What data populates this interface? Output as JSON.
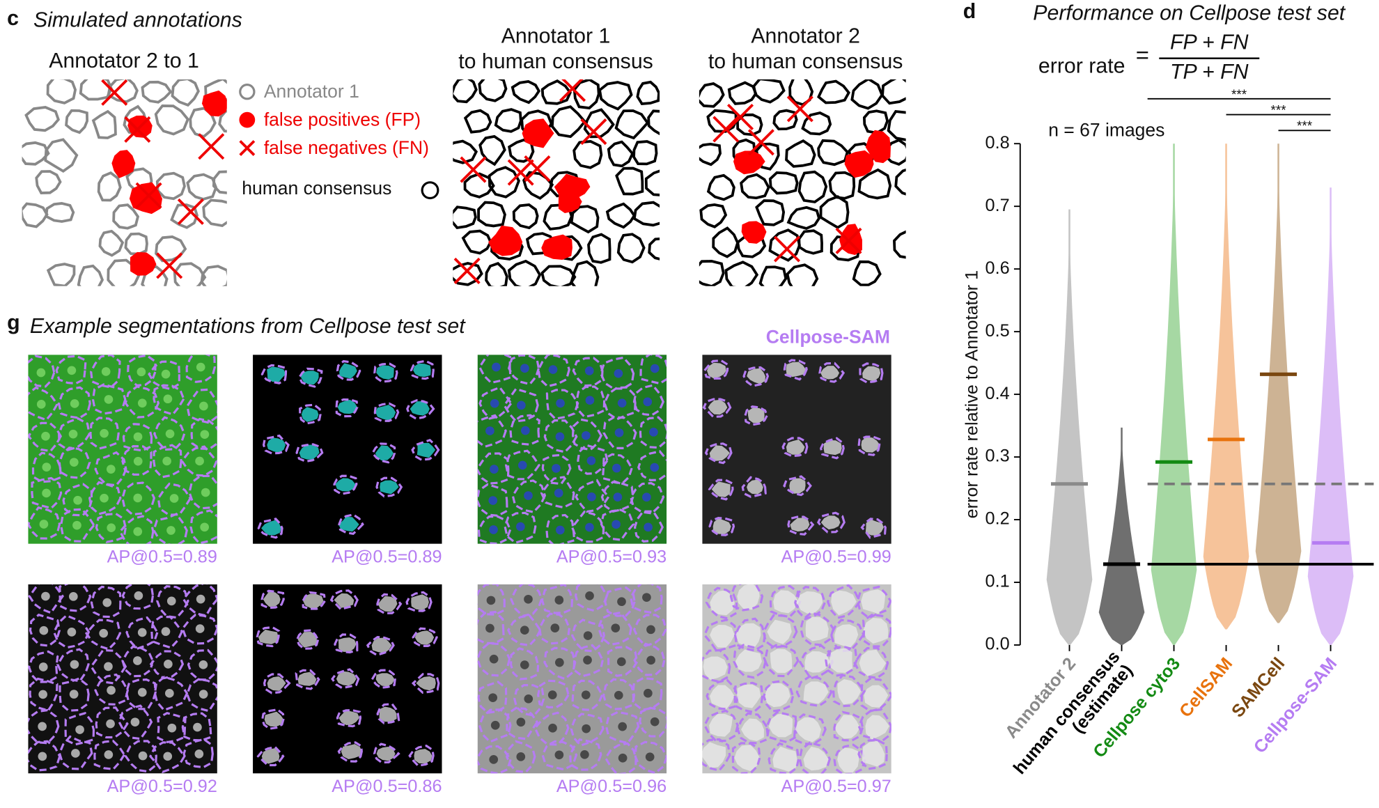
{
  "panel_c": {
    "letter": "c",
    "title": "Simulated annotations",
    "panels": [
      {
        "title": [
          "Annotator 2 to 1"
        ]
      },
      {
        "title": [
          "Annotator 1",
          "to human consensus"
        ]
      },
      {
        "title": [
          "Annotator 2",
          "to human consensus"
        ]
      }
    ],
    "legend": [
      "Annotator 1",
      "false positives (FP)",
      "false negatives (FN)",
      "human consensus"
    ]
  },
  "panel_g": {
    "letter": "g",
    "title": "Example segmentations from Cellpose test set",
    "model": "Cellpose-SAM",
    "images": [
      {
        "label": "AP@0.5=0.89"
      },
      {
        "label": "AP@0.5=0.89"
      },
      {
        "label": "AP@0.5=0.93"
      },
      {
        "label": "AP@0.5=0.99"
      },
      {
        "label": "AP@0.5=0.92"
      },
      {
        "label": "AP@0.5=0.86"
      },
      {
        "label": "AP@0.5=0.96"
      },
      {
        "label": "AP@0.5=0.97"
      }
    ]
  },
  "chart_data": {
    "type": "violin",
    "letter": "d",
    "title": "Performance on Cellpose test set",
    "formula": {
      "lhs": "error rate",
      "eq": "=",
      "numerator": "FP + FN",
      "denominator": "TP + FN"
    },
    "annotation": "n = 67 images",
    "ylabel": "error rate relative to Annotator 1",
    "categories": [
      [
        "Annotator 2"
      ],
      [
        "human consensus",
        "(estimate)"
      ],
      [
        "Cellpose cyto3"
      ],
      [
        "CellSAM"
      ],
      [
        "SAMCell"
      ],
      [
        "Cellpose-SAM"
      ]
    ],
    "values": [
      0.257,
      0.129,
      0.292,
      0.328,
      0.432,
      0.163
    ],
    "min": [
      0,
      0,
      0,
      0.025,
      0.035,
      0
    ],
    "max": [
      0.695,
      0.347,
      0.8,
      0.8,
      0.8,
      0.73
    ],
    "colors": [
      "#c4c4c4",
      "#6f6f6f",
      "#a6d8a3",
      "#f6c39a",
      "#cdb394",
      "#dcbdf7"
    ],
    "median_colors": [
      "#8a8a8a",
      "#000000",
      "#138a13",
      "#e8720c",
      "#7a4710",
      "#b57cf2"
    ],
    "reference_lines": [
      {
        "category": 0,
        "style": "dashed"
      },
      {
        "category": 1,
        "style": "solid"
      }
    ],
    "significance": [
      {
        "from": 2,
        "to": 5,
        "label": "***"
      },
      {
        "from": 3,
        "to": 5,
        "label": "***"
      },
      {
        "from": 4,
        "to": 5,
        "label": "***"
      }
    ],
    "ylim": [
      0,
      0.8
    ],
    "yticks": [
      {
        "value": 0,
        "label": "0.0"
      },
      0.1,
      0.2,
      0.3,
      0.4,
      0.5,
      0.6,
      0.7,
      0.8
    ]
  }
}
